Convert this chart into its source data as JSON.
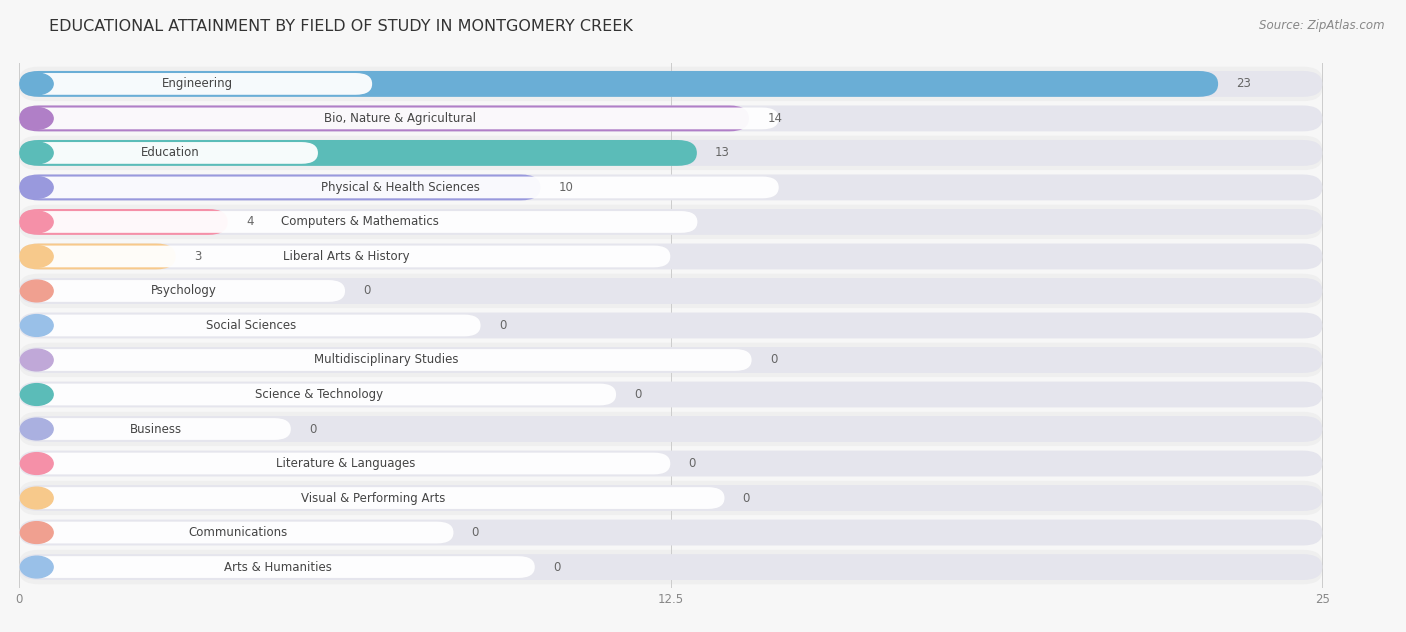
{
  "title": "EDUCATIONAL ATTAINMENT BY FIELD OF STUDY IN MONTGOMERY CREEK",
  "source": "Source: ZipAtlas.com",
  "categories": [
    "Engineering",
    "Bio, Nature & Agricultural",
    "Education",
    "Physical & Health Sciences",
    "Computers & Mathematics",
    "Liberal Arts & History",
    "Psychology",
    "Social Sciences",
    "Multidisciplinary Studies",
    "Science & Technology",
    "Business",
    "Literature & Languages",
    "Visual & Performing Arts",
    "Communications",
    "Arts & Humanities"
  ],
  "values": [
    23,
    14,
    13,
    10,
    4,
    3,
    0,
    0,
    0,
    0,
    0,
    0,
    0,
    0,
    0
  ],
  "bar_colors": [
    "#6aaed6",
    "#b07fc7",
    "#5bbcb8",
    "#9999dd",
    "#f590a8",
    "#f7c98b",
    "#f0a090",
    "#99c0e8",
    "#c0a8d8",
    "#5bbcb8",
    "#aab0e0",
    "#f590a8",
    "#f7c98b",
    "#f0a090",
    "#99c0e8"
  ],
  "xlim": [
    0,
    25
  ],
  "xticks": [
    0,
    12.5,
    25
  ],
  "background_color": "#f7f7f7",
  "bar_bg_color": "#e5e5ed",
  "row_bg_even": "#efefef",
  "row_bg_odd": "#f7f7f7",
  "title_fontsize": 11.5,
  "label_fontsize": 8.5,
  "value_fontsize": 8.5,
  "source_fontsize": 8.5
}
